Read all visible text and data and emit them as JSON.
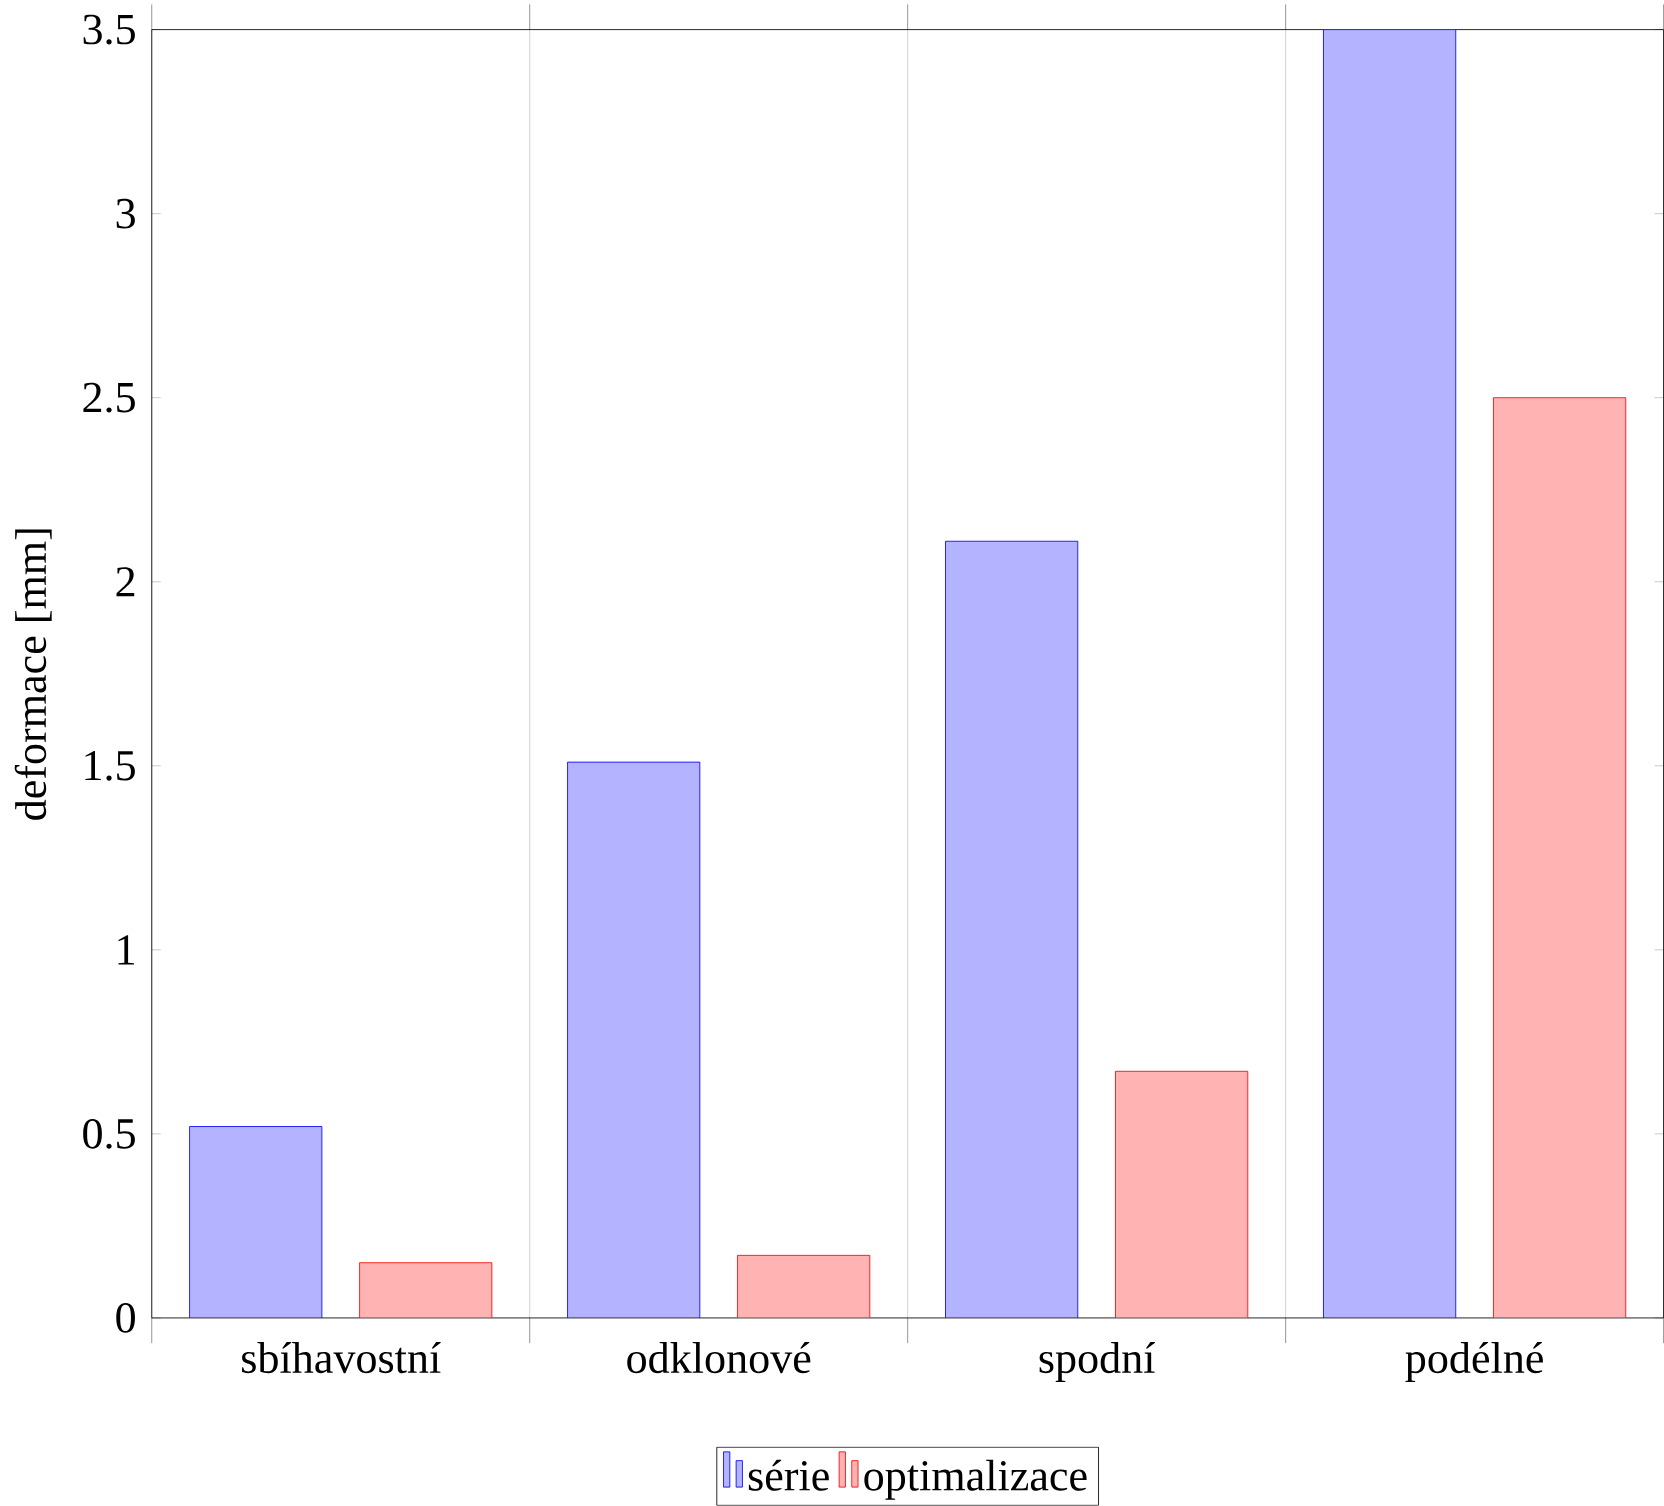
{
  "chart_data": {
    "type": "bar",
    "ylabel": "deformace [mm]",
    "categories": [
      "sbíhavostní",
      "odklonové",
      "spodní",
      "podélné"
    ],
    "series": [
      {
        "name": "série",
        "color": "#b3b3ff",
        "values": [
          0.52,
          1.51,
          2.11,
          3.5
        ]
      },
      {
        "name": "optimalizace",
        "color": "#ffb3b3",
        "values": [
          0.15,
          0.17,
          0.67,
          2.5
        ]
      }
    ],
    "ylim": [
      0,
      3.5
    ],
    "yticks": [
      0,
      0.5,
      1,
      1.5,
      2,
      2.5,
      3,
      3.5
    ],
    "grid": "x",
    "legend": "bottom"
  }
}
